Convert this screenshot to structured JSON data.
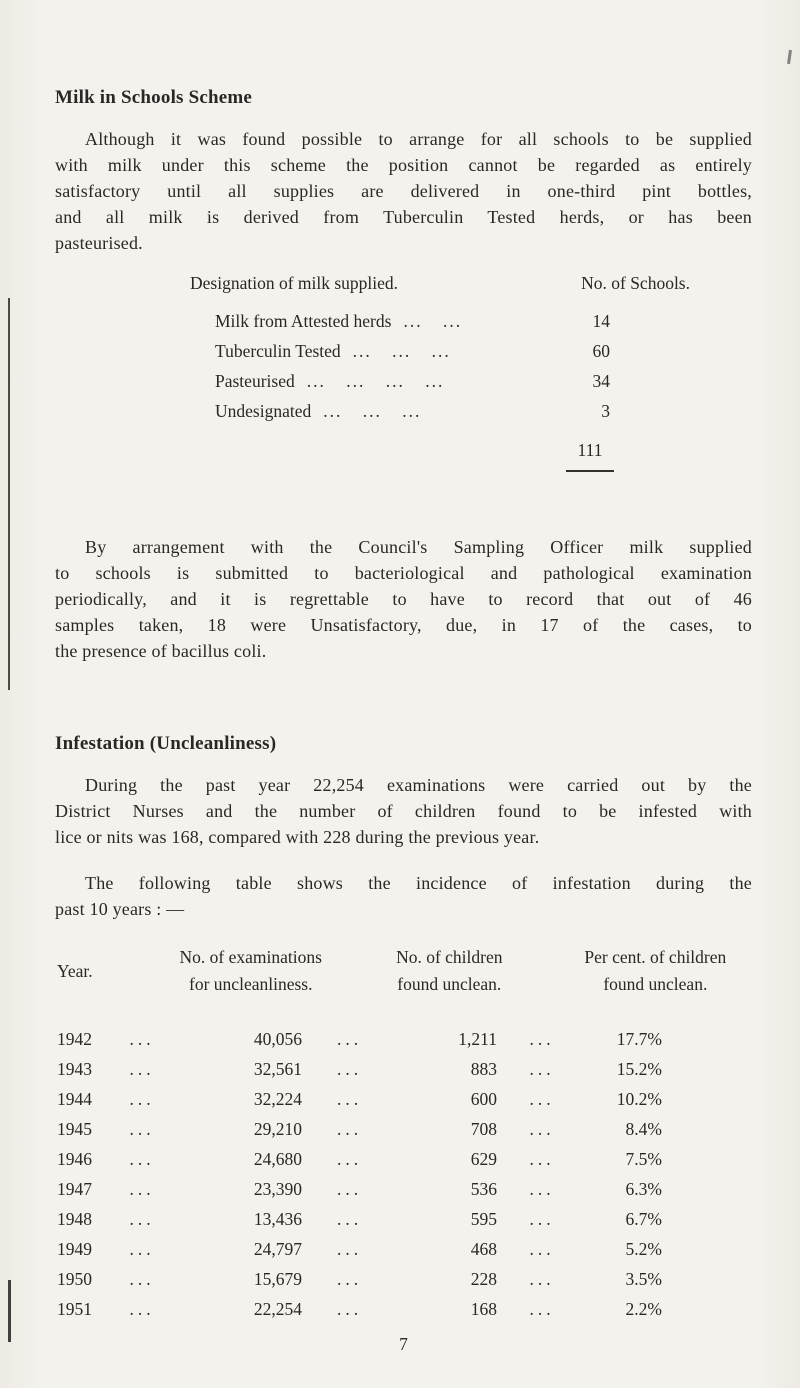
{
  "dots": "...",
  "page": {
    "number": "7"
  },
  "milk_section": {
    "title": "Milk in Schools Scheme",
    "paragraph1_lines": [
      "Although it was found possible to arrange for all schools to be supplied",
      "with milk under this scheme the position cannot be regarded as entirely",
      "satisfactory until all supplies are delivered in one-third pint bottles,",
      "and all milk is derived from Tuberculin Tested herds, or has been",
      "pasteurised."
    ],
    "table": {
      "header_designation": "Designation of milk supplied.",
      "header_schools": "No. of Schools.",
      "rows": [
        {
          "label": "Milk from Attested herds",
          "leader": "... ...",
          "value": "14"
        },
        {
          "label": "Tuberculin Tested",
          "leader": "... ... ...",
          "value": "60"
        },
        {
          "label": "Pasteurised",
          "leader": "... ... ... ...",
          "value": "34"
        },
        {
          "label": "Undesignated",
          "leader": "... ... ...",
          "value": "3"
        }
      ],
      "total": "111"
    },
    "paragraph2_lines": [
      "By arrangement with the Council's Sampling Officer milk supplied",
      "to schools is submitted to bacteriological and pathological examination",
      "periodically, and it is regrettable to have to record that out of 46",
      "samples taken, 18 were Unsatisfactory, due, in 17 of the cases, to",
      "the presence of bacillus coli."
    ]
  },
  "infestation_section": {
    "title": "Infestation (Uncleanliness)",
    "paragraph1_lines": [
      "During the past year 22,254 examinations were carried out by the",
      "District Nurses and the number of children found to be infested with",
      "lice or nits was 168, compared with 228 during the previous year."
    ],
    "paragraph2_lines": [
      "The following table shows the incidence of infestation during the",
      "past 10 years : —"
    ],
    "table": {
      "headers": {
        "year": "Year.",
        "examinations": [
          "No. of examinations",
          "for uncleanliness."
        ],
        "children": [
          "No. of children",
          "found unclean."
        ],
        "percent": [
          "Per cent. of children",
          "found unclean."
        ]
      },
      "rows": [
        {
          "year": "1942",
          "examinations": "40,056",
          "children": "1,211",
          "percent": "17.7%"
        },
        {
          "year": "1943",
          "examinations": "32,561",
          "children": "883",
          "percent": "15.2%"
        },
        {
          "year": "1944",
          "examinations": "32,224",
          "children": "600",
          "percent": "10.2%"
        },
        {
          "year": "1945",
          "examinations": "29,210",
          "children": "708",
          "percent": "8.4%"
        },
        {
          "year": "1946",
          "examinations": "24,680",
          "children": "629",
          "percent": "7.5%"
        },
        {
          "year": "1947",
          "examinations": "23,390",
          "children": "536",
          "percent": "6.3%"
        },
        {
          "year": "1948",
          "examinations": "13,436",
          "children": "595",
          "percent": "6.7%"
        },
        {
          "year": "1949",
          "examinations": "24,797",
          "children": "468",
          "percent": "5.2%"
        },
        {
          "year": "1950",
          "examinations": "15,679",
          "children": "228",
          "percent": "3.5%"
        },
        {
          "year": "1951",
          "examinations": "22,254",
          "children": "168",
          "percent": "2.2%"
        }
      ]
    }
  }
}
